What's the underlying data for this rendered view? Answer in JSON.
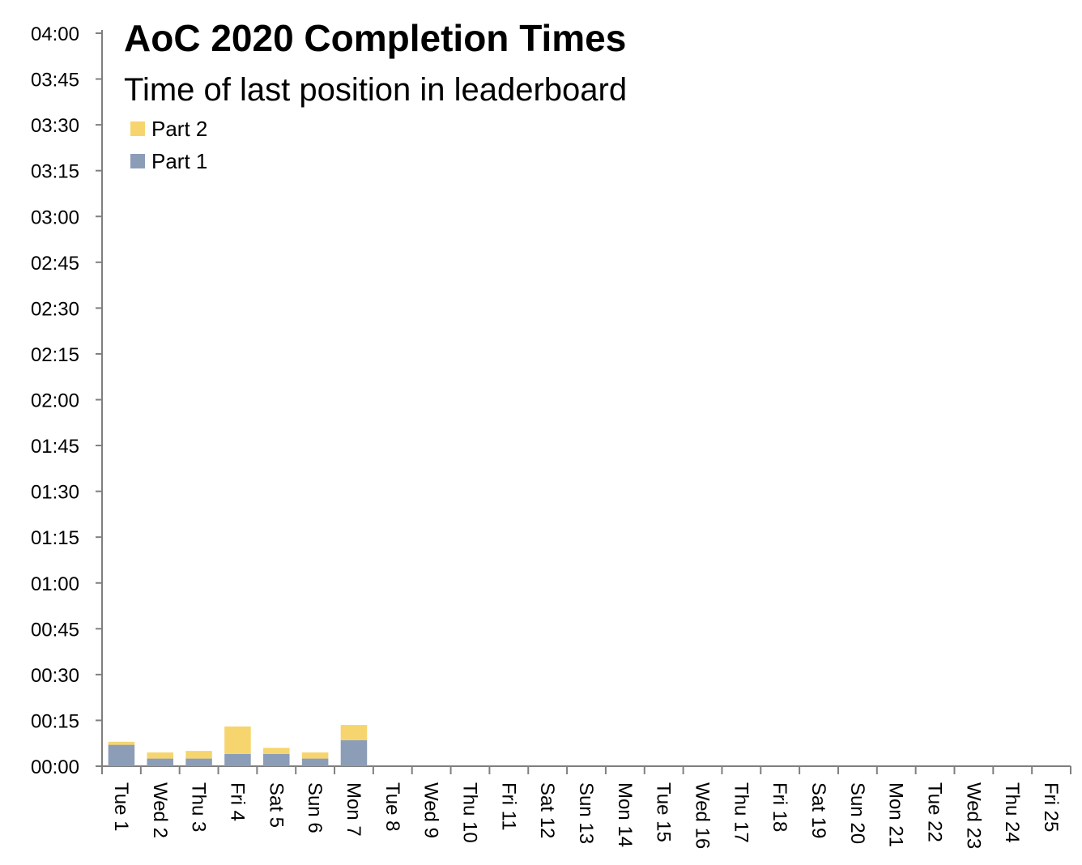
{
  "chart_data": {
    "type": "bar",
    "stacked": true,
    "title": "AoC 2020 Completion Times",
    "subtitle": "Time of last position in leaderboard",
    "categories": [
      "Tue 1",
      "Wed 2",
      "Thu 3",
      "Fri 4",
      "Sat 5",
      "Sun 6",
      "Mon 7",
      "Tue 8",
      "Wed 9",
      "Thu 10",
      "Fri 11",
      "Sat 12",
      "Sun 13",
      "Mon 14",
      "Tue 15",
      "Wed 16",
      "Thu 17",
      "Fri 18",
      "Sat 19",
      "Sun 20",
      "Mon 21",
      "Tue 22",
      "Wed 23",
      "Thu 24",
      "Fri 25"
    ],
    "series": [
      {
        "name": "Part 1",
        "color": "#8c9db8",
        "values_minutes": [
          7,
          2.5,
          2.5,
          4,
          4,
          2.5,
          8.5,
          0,
          0,
          0,
          0,
          0,
          0,
          0,
          0,
          0,
          0,
          0,
          0,
          0,
          0,
          0,
          0,
          0,
          0
        ]
      },
      {
        "name": "Part 2",
        "color": "#f6d56e",
        "values_minutes": [
          1,
          2,
          2.5,
          9,
          2,
          2,
          5,
          0,
          0,
          0,
          0,
          0,
          0,
          0,
          0,
          0,
          0,
          0,
          0,
          0,
          0,
          0,
          0,
          0,
          0
        ]
      }
    ],
    "ylim_minutes": [
      0,
      240
    ],
    "y_tick_labels": [
      "00:00",
      "00:15",
      "00:30",
      "00:45",
      "01:00",
      "01:15",
      "01:30",
      "01:45",
      "02:00",
      "02:15",
      "02:30",
      "02:45",
      "03:00",
      "03:15",
      "03:30",
      "03:45",
      "04:00"
    ],
    "legend": {
      "placement": "top-left",
      "entries": [
        "Part 2",
        "Part 1"
      ]
    },
    "grid": false
  }
}
